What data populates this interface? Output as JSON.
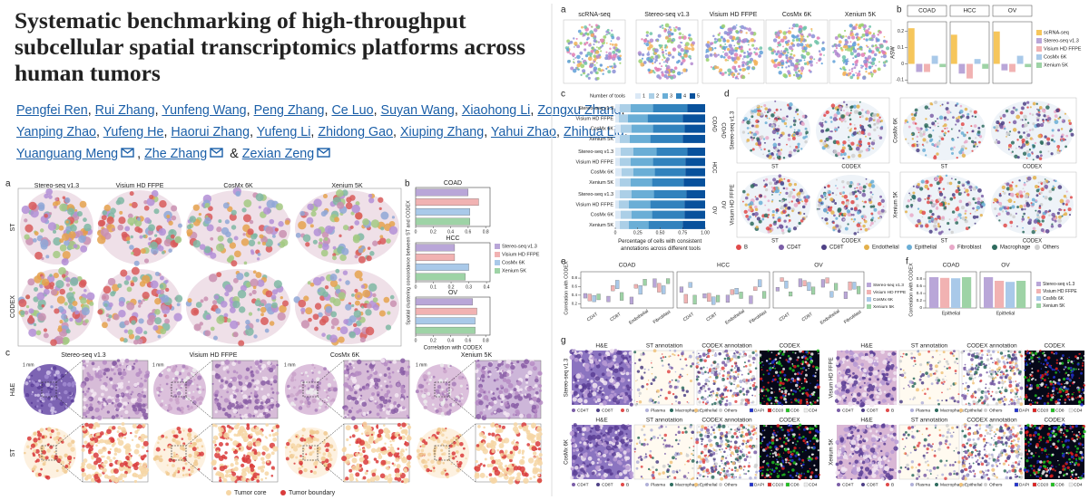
{
  "paper": {
    "title": "Systematic benchmarking of high-throughput subcellular spatial transcriptomics platforms across human tumors",
    "author_lines": [
      [
        "Pengfei Ren",
        "Rui Zhang",
        "Yunfeng Wang",
        "Peng Zhang",
        "Ce Luo",
        "Suyan Wang",
        "Xiaohong Li",
        "Zongxu Zhang"
      ],
      [
        "Yanping Zhao",
        "Yufeng He",
        "Haorui Zhang",
        "Yufeng Li",
        "Zhidong Gao",
        "Xiuping Zhang",
        "Yahui Zhao",
        "Zhihua Liu"
      ],
      [
        "Yuanguang Meng",
        "Zhe Zhang",
        "Zexian Zeng"
      ]
    ],
    "separator": ",",
    "conjunction": "&"
  },
  "figure1": {
    "a": {
      "label": "a",
      "columns": [
        "Stereo-seq v1.3",
        "Visium HD FFPE",
        "CosMx 6K",
        "Xenium 5K"
      ],
      "rows": [
        "ST",
        "CODEX"
      ]
    },
    "b": {
      "label": "b",
      "y_label": "Spatial clustering concordance between ST and CODEX",
      "x_label": "Correlation with CODEX",
      "series": [
        {
          "name": "Stereo-seq v1.3",
          "color": "#b9a6d8"
        },
        {
          "name": "Visium HD FFPE",
          "color": "#f1b2b2"
        },
        {
          "name": "CosMx 6K",
          "color": "#a9c9e9"
        },
        {
          "name": "Xenium 5K",
          "color": "#9ed3a6"
        }
      ],
      "charts": [
        {
          "type": "bar",
          "title": "COAD",
          "values": [
            0.6,
            0.72,
            0.62,
            0.62
          ],
          "xlim": [
            0,
            0.85
          ],
          "xticks": [
            0,
            0.2,
            0.4,
            0.6,
            0.8
          ]
        },
        {
          "type": "bar",
          "title": "HCC",
          "values": [
            0.22,
            0.22,
            0.3,
            0.28
          ],
          "xlim": [
            0,
            0.42
          ],
          "xticks": [
            0,
            0.1,
            0.2,
            0.3,
            0.4
          ]
        },
        {
          "type": "bar",
          "title": "OV",
          "values": [
            0.65,
            0.7,
            0.68,
            0.68
          ],
          "xlim": [
            0,
            0.85
          ],
          "xticks": [
            0,
            0.2,
            0.4,
            0.6,
            0.8
          ]
        }
      ]
    },
    "c": {
      "label": "c",
      "columns": [
        "Stereo-seq v1.3",
        "Visium HD FFPE",
        "CosMx 6K",
        "Xenium 5K"
      ],
      "rows": [
        "H&E",
        "ST"
      ],
      "scale_bar": "1 mm",
      "legend": [
        {
          "name": "Tumor core",
          "color": "#f6d6a4"
        },
        {
          "name": "Tumor boundary",
          "color": "#d93b3b"
        }
      ]
    }
  },
  "figure2": {
    "a": {
      "label": "a",
      "columns": [
        "scRNA-seq",
        "Stereo-seq v1.3",
        "Visium HD FFPE",
        "CosMx 6K",
        "Xenium 5K"
      ]
    },
    "b": {
      "label": "b",
      "type": "bar",
      "y_label": "ASW",
      "ylim": [
        -0.12,
        0.26
      ],
      "yticks": [
        -0.1,
        0,
        0.1,
        0.2
      ],
      "series": [
        {
          "name": "scRNA-seq",
          "color": "#f6c65b"
        },
        {
          "name": "Stereo-seq v1.3",
          "color": "#b9a6d8"
        },
        {
          "name": "Visium HD FFPE",
          "color": "#f1b2b2"
        },
        {
          "name": "CosMx 6K",
          "color": "#a9c9e9"
        },
        {
          "name": "Xenium 5K",
          "color": "#9ed3a6"
        }
      ],
      "panels": [
        {
          "title": "COAD",
          "values": [
            0.22,
            -0.05,
            -0.05,
            0.05,
            -0.02
          ]
        },
        {
          "title": "HCC",
          "values": [
            0.18,
            -0.06,
            -0.09,
            0.03,
            -0.03
          ]
        },
        {
          "title": "OV",
          "values": [
            0.2,
            -0.04,
            -0.05,
            0.05,
            -0.02
          ]
        }
      ]
    },
    "c": {
      "label": "c",
      "type": "stacked_bar",
      "legend_title": "Number of tools",
      "levels": [
        {
          "name": "1",
          "color": "#dbe9f6"
        },
        {
          "name": "2",
          "color": "#abcfe7"
        },
        {
          "name": "3",
          "color": "#6aaed6"
        },
        {
          "name": "4",
          "color": "#3182bd"
        },
        {
          "name": "5",
          "color": "#08519c"
        }
      ],
      "groups": [
        {
          "name": "COAD",
          "rows": [
            "Stereo-seq v1.3",
            "Visium HD FFPE",
            "CosMx 6K",
            "Xenium 5K"
          ],
          "values": [
            [
              0.05,
              0.12,
              0.25,
              0.38,
              0.2
            ],
            [
              0.04,
              0.1,
              0.22,
              0.39,
              0.25
            ],
            [
              0.06,
              0.12,
              0.24,
              0.35,
              0.23
            ],
            [
              0.05,
              0.11,
              0.23,
              0.36,
              0.25
            ]
          ]
        },
        {
          "name": "HCC",
          "rows": [
            "Stereo-seq v1.3",
            "Visium HD FFPE",
            "CosMx 6K",
            "Xenium 5K"
          ],
          "values": [
            [
              0.06,
              0.14,
              0.26,
              0.34,
              0.2
            ],
            [
              0.05,
              0.12,
              0.25,
              0.36,
              0.22
            ],
            [
              0.07,
              0.13,
              0.24,
              0.34,
              0.22
            ],
            [
              0.05,
              0.12,
              0.24,
              0.35,
              0.24
            ]
          ]
        },
        {
          "name": "OV",
          "rows": [
            "Stereo-seq v1.3",
            "Visium HD FFPE",
            "CosMx 6K",
            "Xenium 5K"
          ],
          "values": [
            [
              0.05,
              0.13,
              0.25,
              0.36,
              0.21
            ],
            [
              0.04,
              0.11,
              0.24,
              0.38,
              0.23
            ],
            [
              0.06,
              0.12,
              0.23,
              0.36,
              0.23
            ],
            [
              0.05,
              0.1,
              0.22,
              0.38,
              0.25
            ]
          ]
        }
      ],
      "xlim": [
        0,
        1
      ],
      "xticks": [
        0,
        0.25,
        {
          "value": 0.5,
          "label": "0.50"
        },
        0.75,
        {
          "value": 1,
          "label": "1.00"
        }
      ],
      "x_label": "Percentage of cells with consistent annotations across different tools"
    },
    "d": {
      "label": "d",
      "panels": [
        {
          "platform": "Stereo-seq v1.3",
          "cancer": "COAD"
        },
        {
          "platform": "CosMx 6K"
        },
        {
          "platform": "Visium HD FFPE",
          "cancer": "OV"
        },
        {
          "platform": "Xenium 5K"
        }
      ],
      "columns": [
        "ST",
        "CODEX"
      ],
      "legend": [
        {
          "name": "B",
          "color": "#e04a4a"
        },
        {
          "name": "CD4T",
          "color": "#7b5ea7"
        },
        {
          "name": "CD8T",
          "color": "#4e4186"
        },
        {
          "name": "Endothelial",
          "color": "#e3b04b"
        },
        {
          "name": "Epithelial",
          "color": "#6aaed6"
        },
        {
          "name": "Fibroblast",
          "color": "#e8a8c8"
        },
        {
          "name": "Macrophage",
          "color": "#2e6b5e"
        },
        {
          "name": "Others",
          "color": "#cfcfcf"
        }
      ]
    },
    "e": {
      "label": "e",
      "y_label": "Correlation with CODEX",
      "ylim": [
        0.1,
        0.95
      ],
      "yticks": [
        0.2,
        0.4,
        0.6,
        0.8
      ],
      "panels": [
        "COAD",
        "HCC",
        "OV"
      ],
      "categories": [
        "CD4T",
        "CD8T",
        "Endothelial",
        "Fibroblast"
      ],
      "series": [
        {
          "name": "Stereo-seq v1.3",
          "color": "#b9a6d8"
        },
        {
          "name": "Visium HD FFPE",
          "color": "#f1b2b2"
        },
        {
          "name": "CosMx 6K",
          "color": "#a9c9e9"
        },
        {
          "name": "Xenium 5K",
          "color": "#9ed3a6"
        }
      ]
    },
    "f": {
      "label": "f",
      "type": "bar",
      "y_label": "Correlation with CODEX",
      "ylim": [
        0,
        1
      ],
      "yticks": [
        0,
        0.2,
        0.4,
        0.6,
        0.8
      ],
      "category": "Epithelial",
      "series": [
        {
          "name": "Stereo-seq v1.3",
          "color": "#b9a6d8"
        },
        {
          "name": "Visium HD FFPE",
          "color": "#f1b2b2"
        },
        {
          "name": "CosMx 6K",
          "color": "#a9c9e9"
        },
        {
          "name": "Xenium 5K",
          "color": "#9ed3a6"
        }
      ],
      "panels": [
        {
          "title": "COAD",
          "values": [
            0.85,
            0.83,
            0.82,
            0.85
          ]
        },
        {
          "title": "OV",
          "values": [
            0.85,
            0.75,
            0.72,
            0.75
          ]
        }
      ]
    },
    "g": {
      "label": "g",
      "columns": [
        "H&E",
        "ST annotation",
        "CODEX annotation",
        "CODEX"
      ],
      "rows": [
        "Stereo-seq v1.3",
        "Visium HD FFPE",
        "CosMx 6K",
        "Xenium 5K"
      ],
      "cell_legend": [
        {
          "name": "CD4T",
          "color": "#7b5ea7"
        },
        {
          "name": "CD8T",
          "color": "#4e4186"
        },
        {
          "name": "B",
          "color": "#e04a4a"
        },
        {
          "name": "Plasma",
          "color": "#b0b0d8"
        },
        {
          "name": "Macrophage",
          "color": "#2e6b5e"
        },
        {
          "name": "Epithelial",
          "color": "#f0c27a"
        },
        {
          "name": "Others",
          "color": "#cfcfcf"
        }
      ],
      "marker_legend": [
        {
          "name": "DAPI",
          "color": "#2233cc"
        },
        {
          "name": "CD20",
          "color": "#e02020"
        },
        {
          "name": "CD8",
          "color": "#20c020"
        },
        {
          "name": "CD4",
          "color": "#eeeeee"
        }
      ]
    }
  }
}
